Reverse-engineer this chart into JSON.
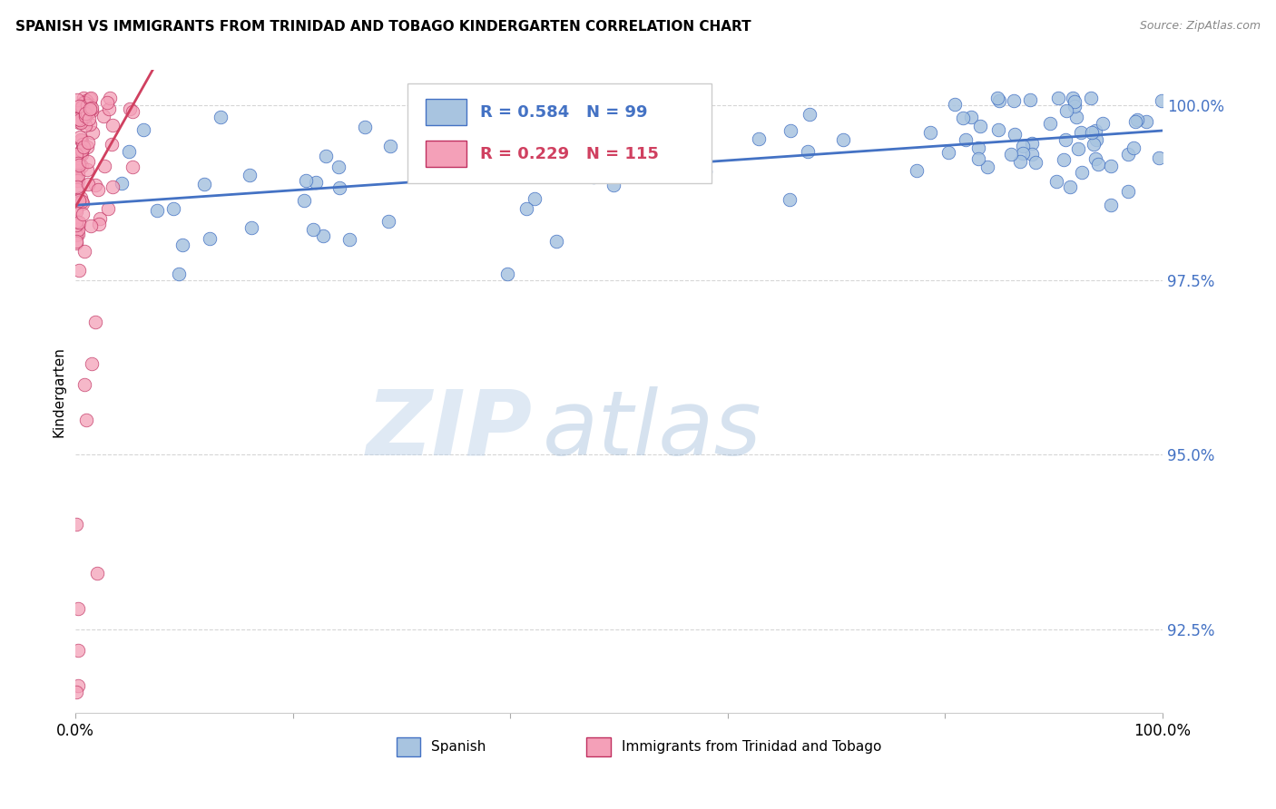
{
  "title": "SPANISH VS IMMIGRANTS FROM TRINIDAD AND TOBAGO KINDERGARTEN CORRELATION CHART",
  "source": "Source: ZipAtlas.com",
  "ylabel": "Kindergarten",
  "xlim": [
    0.0,
    1.0
  ],
  "ylim": [
    0.913,
    1.005
  ],
  "yticks": [
    0.925,
    0.95,
    0.975,
    1.0
  ],
  "ytick_labels": [
    "92.5%",
    "95.0%",
    "97.5%",
    "100.0%"
  ],
  "xtick_labels": [
    "0.0%",
    "",
    "",
    "",
    "",
    "100.0%"
  ],
  "blue_R": 0.584,
  "blue_N": 99,
  "pink_R": 0.229,
  "pink_N": 115,
  "blue_color": "#a8c4e0",
  "pink_color": "#f4a0b8",
  "blue_line_color": "#4472c4",
  "pink_line_color": "#d04060",
  "pink_edge_color": "#c03060",
  "legend_label_blue": "Spanish",
  "legend_label_pink": "Immigrants from Trinidad and Tobago",
  "watermark_zip": "ZIP",
  "watermark_atlas": "atlas",
  "title_fontsize": 11,
  "axis_color": "#4472c4",
  "grid_color": "#cccccc",
  "source_color": "#888888"
}
